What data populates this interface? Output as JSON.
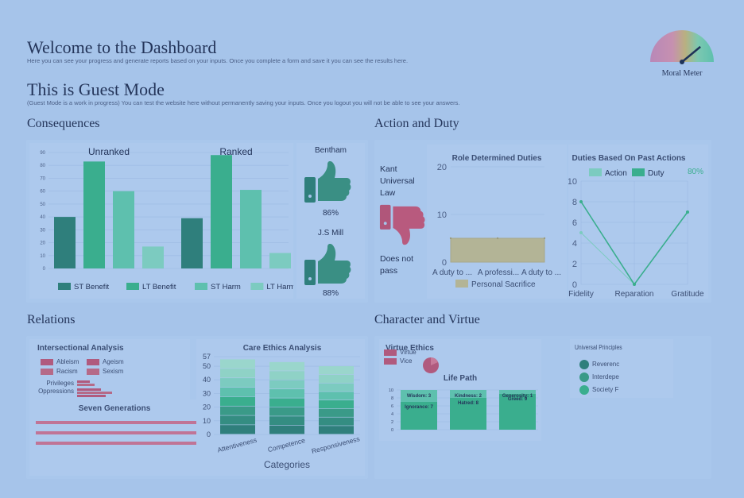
{
  "header": {
    "title": "Welcome to the Dashboard",
    "subtitle": "Here you can see your progress and generate reports based on your inputs. Once you complete a form and save it you can see the results here."
  },
  "guest": {
    "title": "This is Guest Mode",
    "subtitle": "(Guest Mode is a work in progress) You can test the website here without permanently saving your inputs. Once you logout you will not be able to see your answers."
  },
  "moral_meter": {
    "label": "Moral Meter",
    "needle_fraction": 0.78
  },
  "consequences": {
    "heading": "Consequences",
    "chart_data": {
      "type": "bar",
      "groups": [
        "Unranked",
        "Ranked"
      ],
      "series": [
        {
          "name": "ST Benefit",
          "values": [
            40,
            39
          ],
          "color": "#2f7f7c"
        },
        {
          "name": "LT Benefit",
          "values": [
            83,
            88
          ],
          "color": "#3aae8e"
        },
        {
          "name": "ST Harm",
          "values": [
            60,
            61
          ],
          "color": "#5ec0ae"
        },
        {
          "name": "LT Harm",
          "values": [
            17,
            12
          ],
          "color": "#7ccbc0"
        }
      ],
      "ylim": [
        0,
        90
      ],
      "yticks": [
        "0",
        "10",
        "20",
        "30",
        "40",
        "50",
        "60",
        "70",
        "80",
        "90"
      ]
    },
    "bentham": {
      "label": "Bentham",
      "value": "86%"
    },
    "jsmill": {
      "label": "J.S Mill",
      "value": "88%"
    }
  },
  "action_duty": {
    "heading": "Action and Duty",
    "kant": {
      "label_lines": [
        "Kant",
        "Universal",
        "Law"
      ],
      "result_lines": [
        "Does not",
        "pass"
      ]
    },
    "role_chart": {
      "title": "Role Determined Duties",
      "chart_data": {
        "type": "area",
        "categories": [
          "A duty to ...",
          "A professi...",
          "A duty to ..."
        ],
        "series": [
          {
            "name": "Personal Sacrifice",
            "values": [
              5,
              5,
              5
            ]
          }
        ],
        "ylim": [
          0,
          20
        ],
        "yticks": [
          "0",
          "10",
          "20"
        ]
      }
    },
    "past_chart": {
      "title": "Duties Based On Past Actions",
      "percent": "80%",
      "chart_data": {
        "type": "line",
        "categories": [
          "Fidelity",
          "Reparation",
          "Gratitude"
        ],
        "series": [
          {
            "name": "Action",
            "values": [
              5,
              0,
              7
            ]
          },
          {
            "name": "Duty",
            "values": [
              8,
              0,
              7
            ]
          }
        ],
        "ylim": [
          0,
          10
        ],
        "yticks": [
          "0",
          "2",
          "4",
          "6",
          "8",
          "10"
        ]
      }
    }
  },
  "relations": {
    "heading": "Relations",
    "intersectional": {
      "title": "Intersectional Analysis",
      "legend": [
        "Ableism",
        "Ageism",
        "Racism",
        "Sexism"
      ],
      "rows": [
        "Privileges",
        "Oppressions"
      ]
    },
    "seven_generations": {
      "title": "Seven Generations"
    },
    "care_ethics": {
      "title": "Care Ethics Analysis",
      "chart_data": {
        "type": "bar",
        "categories": [
          "Attentiveness",
          "Competence",
          "Responsiveness"
        ],
        "totals": [
          55,
          53,
          50
        ],
        "ylim": [
          0,
          57
        ],
        "yticks": [
          "0",
          "10",
          "20",
          "30",
          "40",
          "50",
          "57"
        ],
        "xlabel": "Categories"
      }
    }
  },
  "character_virtue": {
    "heading": "Character and Virtue",
    "virtue_ethics": {
      "title": "Virtue Ethics",
      "legend": [
        "Virtue",
        "Vice"
      ]
    },
    "life_path": {
      "title": "Life Path",
      "bars": [
        {
          "top": "Wisdom: 3",
          "bottom": "Ignorance: 7"
        },
        {
          "top": "Kindness: 2",
          "bottom": "Hatred: 8"
        },
        {
          "top": "Generosity: 1",
          "bottom": "Greed: 9"
        }
      ],
      "yticks": [
        "0",
        "2",
        "4",
        "6",
        "8",
        "10"
      ]
    },
    "universal": {
      "title": "Universal Principles",
      "items": [
        "Reverenc",
        "Interdepe",
        "Society F"
      ]
    }
  }
}
